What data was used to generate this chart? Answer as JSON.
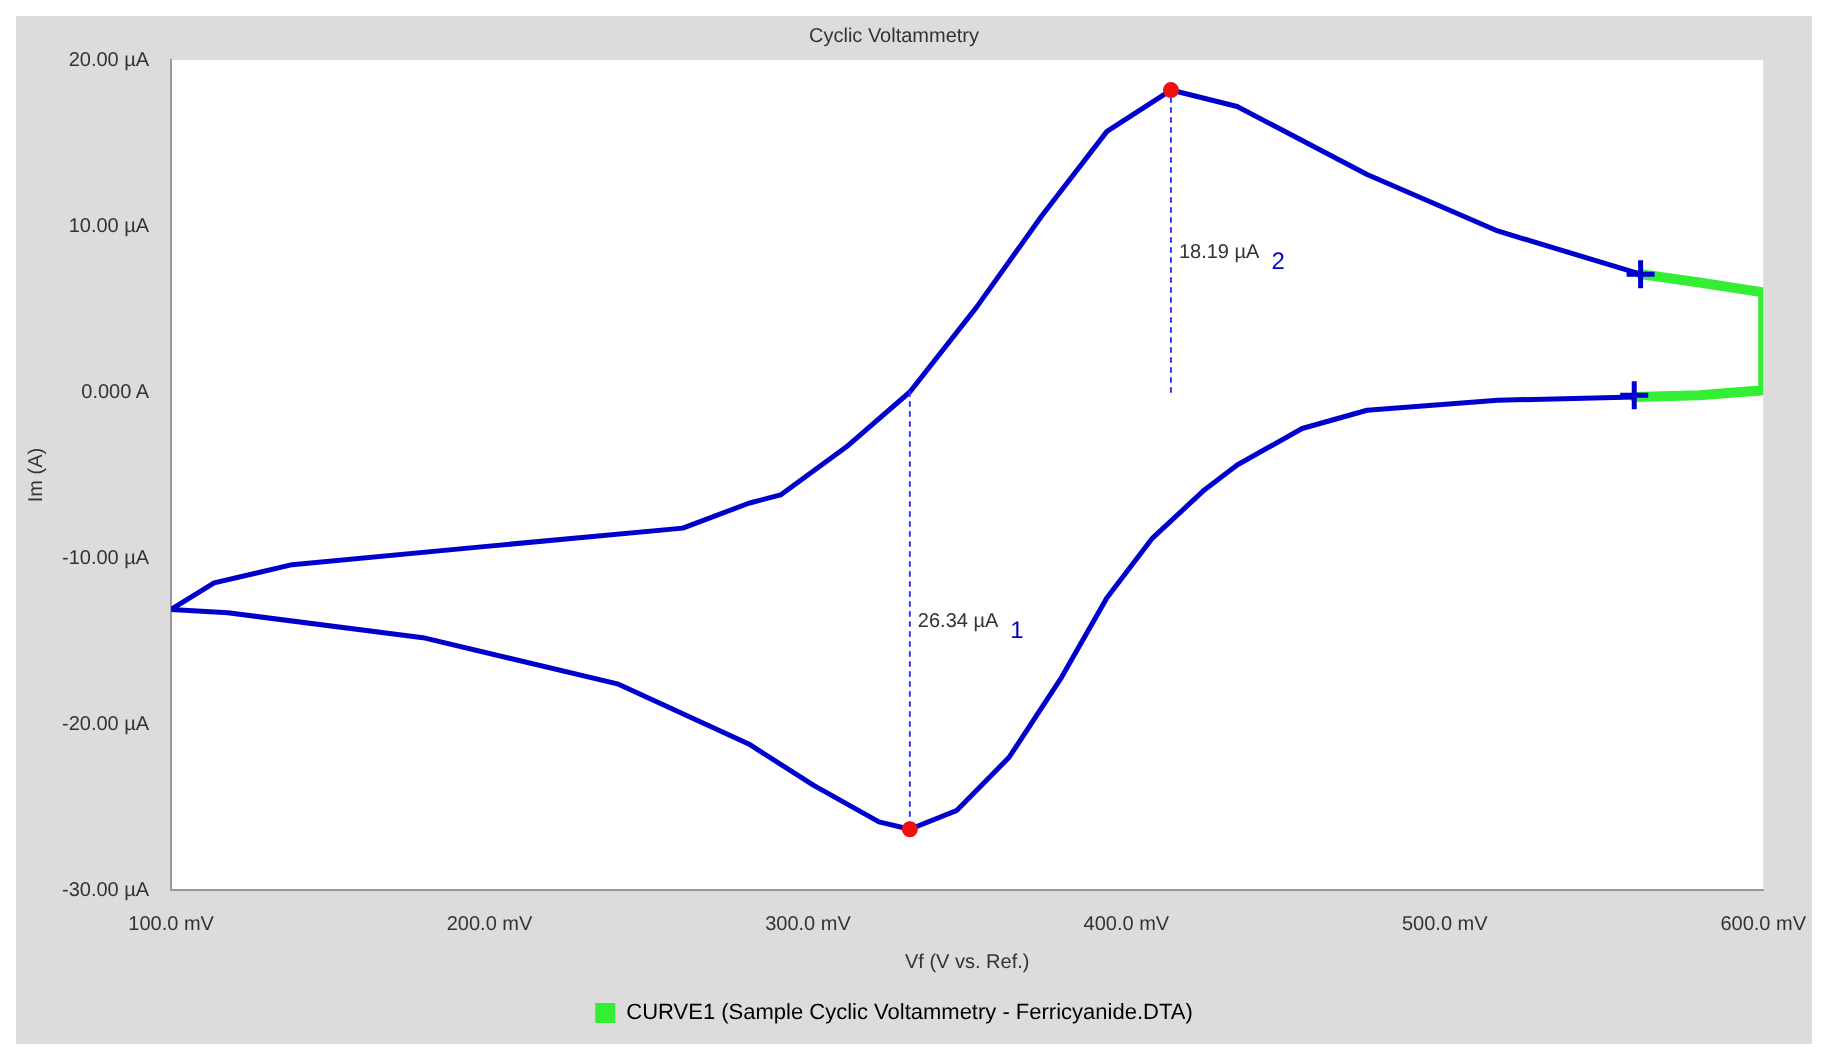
{
  "chart_data": {
    "type": "line",
    "title": "Cyclic Voltammetry",
    "xlabel": "Vf (V vs. Ref.)",
    "ylabel": "Im (A)",
    "xlim": [
      100,
      600
    ],
    "ylim": [
      -30,
      20
    ],
    "xticks": [
      {
        "value": 100,
        "label": "100.0 mV"
      },
      {
        "value": 200,
        "label": "200.0 mV"
      },
      {
        "value": 300,
        "label": "300.0 mV"
      },
      {
        "value": 400,
        "label": "400.0 mV"
      },
      {
        "value": 500,
        "label": "500.0 mV"
      },
      {
        "value": 600,
        "label": "600.0 mV"
      }
    ],
    "yticks": [
      {
        "value": -30,
        "label": "-30.00 µA"
      },
      {
        "value": -20,
        "label": "-20.00 µA"
      },
      {
        "value": -10,
        "label": "-10.00 µA"
      },
      {
        "value": 0,
        "label": "0.000 A"
      },
      {
        "value": 10,
        "label": "10.00 µA"
      },
      {
        "value": 20,
        "label": "20.00 µA"
      }
    ],
    "grid": false,
    "legend": "bottom",
    "series": [
      {
        "name": "CURVE1 (Sample Cyclic Voltammetry - Ferricyanide.DTA)",
        "type": "line",
        "color": "#33ee33",
        "marker": "none",
        "x": [
          561.5,
          580,
          600,
          600,
          580,
          559.5
        ],
        "values": [
          7.1,
          6.6,
          6.0,
          0.1,
          -0.2,
          -0.3
        ]
      },
      {
        "type": "line",
        "color": "#0000cc",
        "marker": "none",
        "x": [
          100,
          113.5,
          138,
          199,
          260.7,
          281.4,
          291.4,
          312.1,
          332,
          352.9,
          373.4,
          393.9,
          414,
          434.8,
          475.6,
          516.6,
          561.5,
          560,
          559.5,
          516.6,
          475.6,
          455.2,
          434.8,
          424.5,
          408.2,
          393.9,
          379.6,
          363.2,
          346.8,
          332,
          322.3,
          301.8,
          281.4,
          240.5,
          179.1,
          117.8,
          100
        ],
        "values": [
          -13.1,
          -11.5,
          -10.4,
          -9.3,
          -8.2,
          -6.7,
          -6.2,
          -3.3,
          0,
          5.1,
          10.6,
          15.7,
          18.19,
          17.2,
          13.1,
          9.7,
          7.1,
          null,
          -0.3,
          -0.5,
          -1.1,
          -2.2,
          -4.4,
          -5.9,
          -8.8,
          -12.4,
          -17.2,
          -22.0,
          -25.2,
          -26.34,
          -25.9,
          -23.7,
          -21.2,
          -17.6,
          -14.8,
          -13.3,
          -13.1
        ]
      },
      {
        "type": "line",
        "color": "#3333ff",
        "marker": "none",
        "line_style": "dotted",
        "x": [
          332,
          332
        ],
        "values": [
          0,
          -26.34
        ]
      },
      {
        "type": "line",
        "color": "#3333ff",
        "marker": "none",
        "line_style": "dotted",
        "x": [
          414,
          414
        ],
        "values": [
          0,
          18.19
        ]
      },
      {
        "type": "scatter",
        "color": "#ee1111",
        "marker": "circle",
        "x": [
          332,
          414
        ],
        "values": [
          -26.34,
          18.19
        ]
      },
      {
        "type": "scatter",
        "color": "#0000cc",
        "marker": "cross",
        "x": [
          561.5,
          559.5
        ],
        "values": [
          7.1,
          -0.2
        ]
      }
    ],
    "annotations": [
      {
        "text": "26.34 µA",
        "x": 332,
        "y": -13.8
      },
      "1",
      {
        "text": "18.19 µA",
        "x": 414,
        "y": 8.4
      },
      "2"
    ]
  }
}
